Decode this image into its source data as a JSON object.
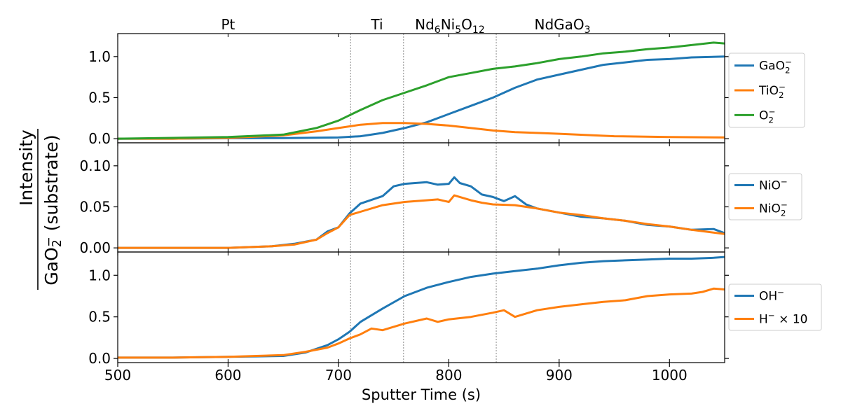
{
  "chart_data": {
    "type": "line",
    "xlabel": "Sputter Time (s)",
    "ylabel_numerator": "Intensity",
    "ylabel_denominator": "GaO2⁻ (substrate)",
    "xlim": [
      500,
      1050
    ],
    "xticks": [
      "500",
      "600",
      "700",
      "800",
      "900",
      "1000"
    ],
    "xtick_values": [
      500,
      600,
      700,
      800,
      900,
      1000
    ],
    "layer_boundaries": [
      711,
      759,
      843
    ],
    "layer_labels": [
      {
        "text": "Pt",
        "x": 600
      },
      {
        "text": "Ti",
        "x": 735
      },
      {
        "text": "Nd6Ni5O12",
        "x": 801
      },
      {
        "text": "NdGaO3",
        "x": 903
      }
    ],
    "colors": {
      "blue": "#1f77b4",
      "orange": "#ff7f0e",
      "green": "#2ca02c",
      "grid": "#808080"
    },
    "panels": [
      {
        "ylim": [
          -0.05,
          1.28
        ],
        "yticks": [
          "0.0",
          "0.5",
          "1.0"
        ],
        "ytick_values": [
          0,
          0.5,
          1.0
        ],
        "series": [
          {
            "name": "GaO2⁻",
            "color": "#1f77b4",
            "x": [
              500,
              550,
              600,
              650,
              700,
              720,
              740,
              760,
              780,
              800,
              820,
              840,
              860,
              880,
              900,
              920,
              940,
              960,
              980,
              1000,
              1020,
              1050
            ],
            "y": [
              0.0,
              0.0,
              0.005,
              0.008,
              0.015,
              0.03,
              0.07,
              0.13,
              0.2,
              0.3,
              0.4,
              0.5,
              0.62,
              0.72,
              0.78,
              0.84,
              0.9,
              0.93,
              0.96,
              0.97,
              0.99,
              1.0
            ]
          },
          {
            "name": "TiO2⁻",
            "color": "#ff7f0e",
            "x": [
              500,
              550,
              600,
              650,
              680,
              700,
              720,
              740,
              760,
              780,
              800,
              820,
              840,
              860,
              880,
              900,
              950,
              1000,
              1050
            ],
            "y": [
              0.0,
              0.0,
              0.01,
              0.04,
              0.09,
              0.13,
              0.17,
              0.19,
              0.19,
              0.18,
              0.16,
              0.13,
              0.1,
              0.08,
              0.07,
              0.06,
              0.03,
              0.02,
              0.015
            ]
          },
          {
            "name": "O2⁻",
            "color": "#2ca02c",
            "x": [
              500,
              550,
              600,
              650,
              680,
              700,
              720,
              740,
              760,
              780,
              800,
              820,
              840,
              860,
              880,
              900,
              920,
              940,
              960,
              980,
              1000,
              1020,
              1040,
              1050
            ],
            "y": [
              0.0,
              0.01,
              0.02,
              0.05,
              0.13,
              0.22,
              0.35,
              0.47,
              0.56,
              0.65,
              0.75,
              0.8,
              0.85,
              0.88,
              0.92,
              0.97,
              1.0,
              1.04,
              1.06,
              1.09,
              1.11,
              1.14,
              1.17,
              1.16
            ]
          }
        ]
      },
      {
        "ylim": [
          -0.005,
          0.128
        ],
        "yticks": [
          "0.00",
          "0.05",
          "0.10"
        ],
        "ytick_values": [
          0,
          0.05,
          0.1
        ],
        "series": [
          {
            "name": "NiO⁻",
            "color": "#1f77b4",
            "x": [
              500,
              600,
              640,
              660,
              680,
              690,
              700,
              710,
              720,
              740,
              750,
              760,
              780,
              790,
              800,
              805,
              810,
              820,
              830,
              840,
              850,
              860,
              870,
              880,
              900,
              920,
              940,
              960,
              980,
              1000,
              1020,
              1040,
              1050
            ],
            "y": [
              0.0,
              0.0,
              0.002,
              0.005,
              0.01,
              0.02,
              0.025,
              0.042,
              0.054,
              0.063,
              0.075,
              0.078,
              0.08,
              0.077,
              0.078,
              0.086,
              0.079,
              0.075,
              0.065,
              0.062,
              0.057,
              0.063,
              0.053,
              0.048,
              0.043,
              0.038,
              0.036,
              0.033,
              0.028,
              0.026,
              0.022,
              0.023,
              0.018
            ]
          },
          {
            "name": "NiO2⁻",
            "color": "#ff7f0e",
            "x": [
              500,
              600,
              640,
              660,
              680,
              690,
              700,
              710,
              720,
              740,
              760,
              780,
              790,
              800,
              805,
              810,
              820,
              830,
              840,
              860,
              880,
              900,
              920,
              940,
              960,
              980,
              1000,
              1020,
              1050
            ],
            "y": [
              0.0,
              0.0,
              0.002,
              0.004,
              0.01,
              0.018,
              0.025,
              0.04,
              0.044,
              0.052,
              0.056,
              0.058,
              0.059,
              0.056,
              0.064,
              0.062,
              0.058,
              0.055,
              0.053,
              0.052,
              0.048,
              0.043,
              0.04,
              0.036,
              0.033,
              0.029,
              0.026,
              0.022,
              0.017
            ]
          }
        ]
      },
      {
        "ylim": [
          -0.05,
          1.28
        ],
        "yticks": [
          "0.0",
          "0.5",
          "1.0"
        ],
        "ytick_values": [
          0,
          0.5,
          1.0
        ],
        "series": [
          {
            "name": "OH⁻",
            "color": "#1f77b4",
            "x": [
              500,
              550,
              600,
              650,
              670,
              690,
              700,
              710,
              720,
              740,
              760,
              780,
              800,
              820,
              840,
              860,
              880,
              900,
              920,
              940,
              960,
              980,
              1000,
              1020,
              1040,
              1050
            ],
            "y": [
              0.01,
              0.01,
              0.02,
              0.03,
              0.07,
              0.16,
              0.23,
              0.32,
              0.44,
              0.6,
              0.75,
              0.85,
              0.92,
              0.98,
              1.02,
              1.05,
              1.08,
              1.12,
              1.15,
              1.17,
              1.18,
              1.19,
              1.2,
              1.2,
              1.21,
              1.22
            ]
          },
          {
            "name": "H⁻  × 10",
            "color": "#ff7f0e",
            "x": [
              500,
              550,
              600,
              650,
              670,
              690,
              700,
              710,
              720,
              730,
              740,
              750,
              760,
              780,
              790,
              800,
              820,
              840,
              850,
              860,
              880,
              900,
              920,
              940,
              960,
              980,
              1000,
              1020,
              1030,
              1040,
              1050
            ],
            "y": [
              0.01,
              0.01,
              0.02,
              0.04,
              0.08,
              0.13,
              0.18,
              0.24,
              0.29,
              0.36,
              0.34,
              0.38,
              0.42,
              0.48,
              0.44,
              0.47,
              0.5,
              0.55,
              0.58,
              0.5,
              0.58,
              0.62,
              0.65,
              0.68,
              0.7,
              0.75,
              0.77,
              0.78,
              0.8,
              0.84,
              0.83
            ]
          }
        ]
      }
    ]
  }
}
